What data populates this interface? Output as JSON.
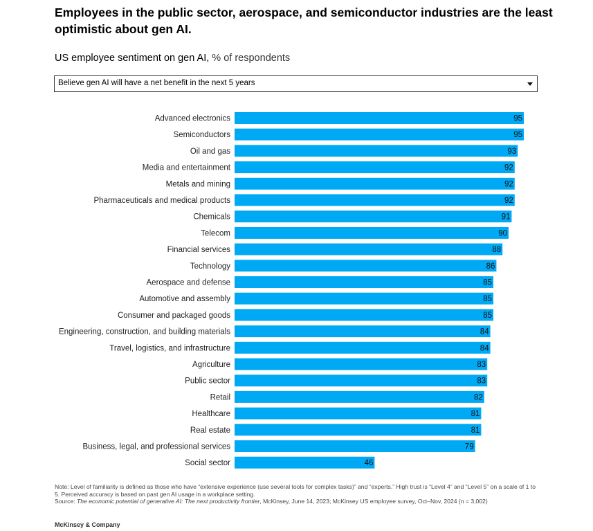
{
  "header": {
    "title": "Employees in the public sector, aerospace, and semiconductor industries are the least optimistic about gen AI.",
    "subtitle_main": "US employee sentiment on gen AI,",
    "subtitle_unit": " % of respondents"
  },
  "filter": {
    "selected": "Believe gen AI will have a net benefit in the next 5 years",
    "icon": "caret-down-icon"
  },
  "chart_data": {
    "type": "bar",
    "orientation": "horizontal",
    "categories": [
      "Advanced electronics",
      "Semiconductors",
      "Oil and gas",
      "Media and entertainment",
      "Metals and mining",
      "Pharmaceuticals and medical products",
      "Chemicals",
      "Telecom",
      "Financial services",
      "Technology",
      "Aerospace and defense",
      "Automotive and assembly",
      "Consumer and packaged goods",
      "Engineering, construction, and building materials",
      "Travel, logistics, and infrastructure",
      "Agriculture",
      "Public sector",
      "Retail",
      "Healthcare",
      "Real estate",
      "Business, legal, and professional services",
      "Social sector"
    ],
    "values": [
      95,
      95,
      93,
      92,
      92,
      92,
      91,
      90,
      88,
      86,
      85,
      85,
      85,
      84,
      84,
      83,
      83,
      82,
      81,
      81,
      79,
      46
    ],
    "xlim": [
      0,
      100
    ],
    "bar_color": "#00A9F4",
    "grid": false,
    "legend": "none"
  },
  "footer": {
    "note": "Note: Level of familiarity is defined as those who have “extensive experience (use several tools for complex tasks)” and “experts.” High trust is “Level 4” and “Level 5” on a scale of 1 to 5. Perceived accuracy is based on past gen AI usage in a workplace setting.",
    "source_prefix": "Source: ",
    "source_title": "The economic potential of generative AI: The next productivity frontier",
    "source_rest": ", McKinsey, June 14, 2023; McKinsey US employee survey, Oct–Nov, 2024 (n = 3,002)",
    "brand": "McKinsey & Company"
  }
}
